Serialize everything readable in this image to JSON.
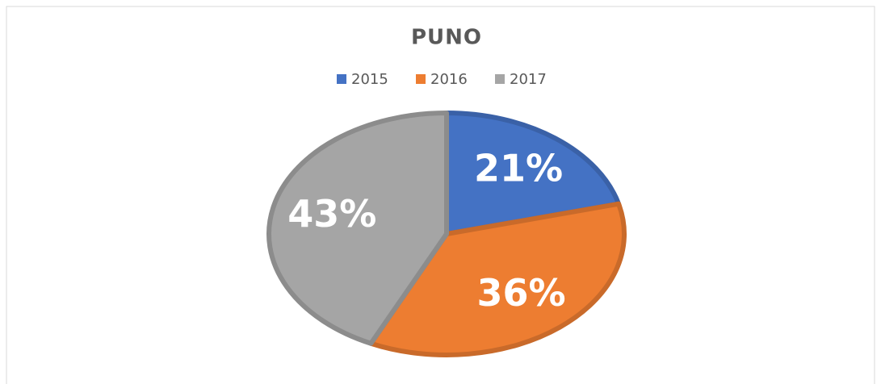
{
  "chart_data": {
    "type": "pie",
    "title": "PUNO",
    "categories": [
      "2015",
      "2016",
      "2017"
    ],
    "values": [
      21,
      36,
      43
    ],
    "value_labels": [
      "21%",
      "36%",
      "43%"
    ],
    "colors": [
      "#4472c4",
      "#ed7d31",
      "#a5a5a5"
    ],
    "legend": "top"
  }
}
